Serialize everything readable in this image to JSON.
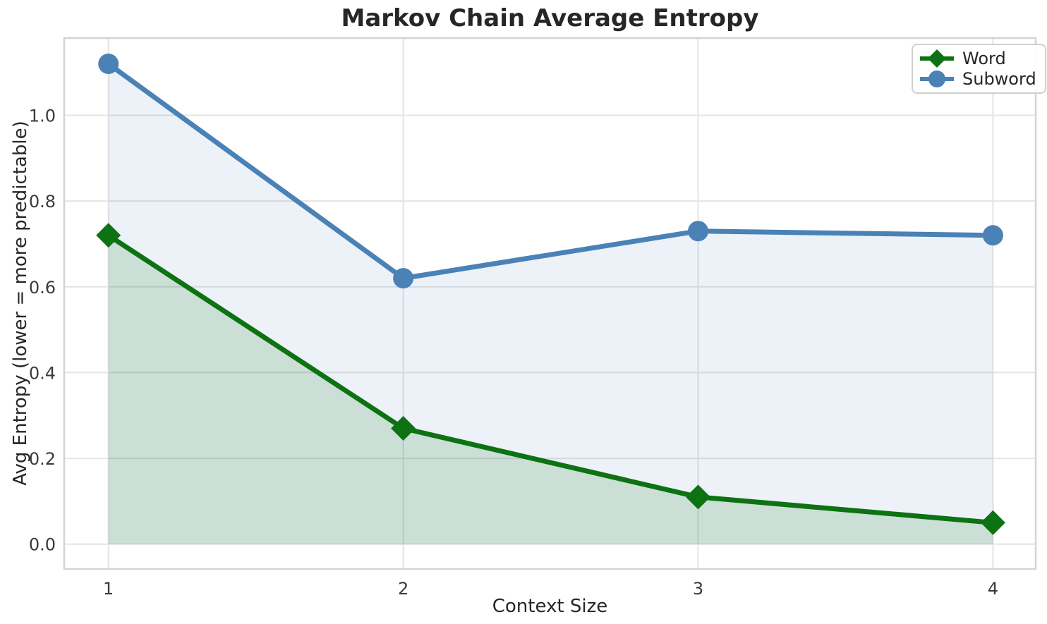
{
  "chart_data": {
    "type": "line",
    "title": "Markov Chain Average Entropy",
    "xlabel": "Context Size",
    "ylabel": "Avg Entropy (lower = more predictable)",
    "x": [
      1,
      2,
      3,
      4
    ],
    "series": [
      {
        "name": "Word",
        "values": [
          0.72,
          0.27,
          0.11,
          0.05
        ],
        "color": "#0d7212",
        "marker": "diamond",
        "fill_opacity": 0.15
      },
      {
        "name": "Subword",
        "values": [
          1.12,
          0.62,
          0.73,
          0.72
        ],
        "color": "#4a82b6",
        "marker": "circle",
        "fill_opacity": 0.1
      }
    ],
    "xlim": [
      0.85,
      4.145
    ],
    "ylim": [
      -0.058,
      1.18
    ],
    "xticks": {
      "values": [
        1,
        2,
        3,
        4
      ],
      "labels": [
        "1",
        "2",
        "3",
        "4"
      ]
    },
    "yticks": {
      "values": [
        0.0,
        0.2,
        0.4,
        0.6,
        0.8,
        1.0
      ],
      "labels": [
        "0.0",
        "0.2",
        "0.4",
        "0.6",
        "0.8",
        "1.0"
      ]
    },
    "grid": true,
    "area_fill_to": 0.0,
    "legend_position": "top-right",
    "colors": {
      "grid": "#e4e4e4",
      "spine": "#d4d4d4",
      "tick_text": "#3a3a3a",
      "text": "#262626"
    }
  }
}
